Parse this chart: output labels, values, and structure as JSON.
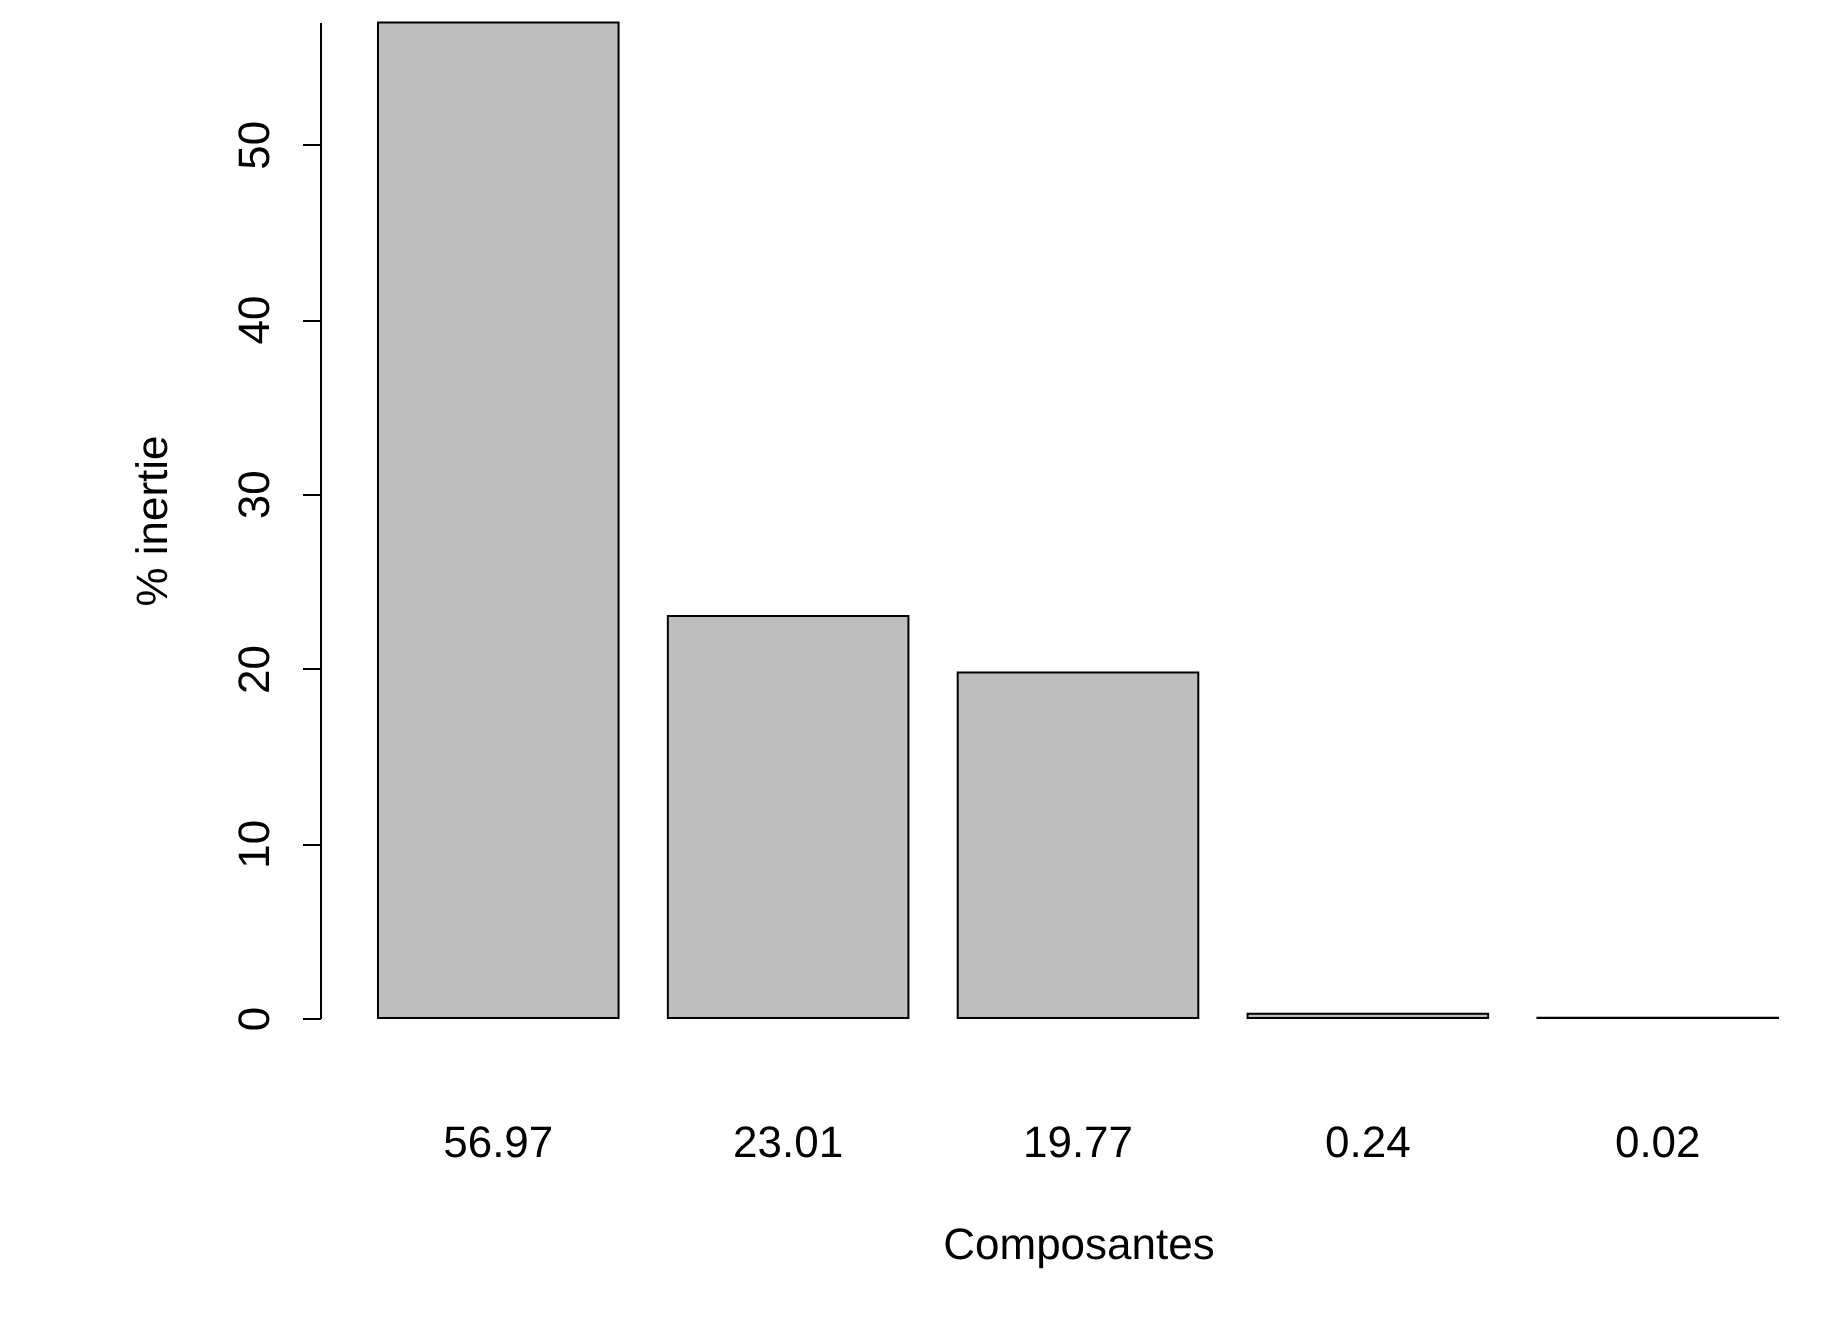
{
  "chart_data": {
    "type": "bar",
    "xlabel": "Composantes",
    "ylabel": "% inertie",
    "categories": [
      "56.97",
      "23.01",
      "19.77",
      "0.24",
      "0.02"
    ],
    "values": [
      56.97,
      23.01,
      19.77,
      0.24,
      0.02
    ],
    "color": "#bebebe",
    "ylim": [
      0,
      57
    ],
    "yticks": [
      0,
      10,
      20,
      30,
      40,
      50
    ],
    "grid": false
  }
}
